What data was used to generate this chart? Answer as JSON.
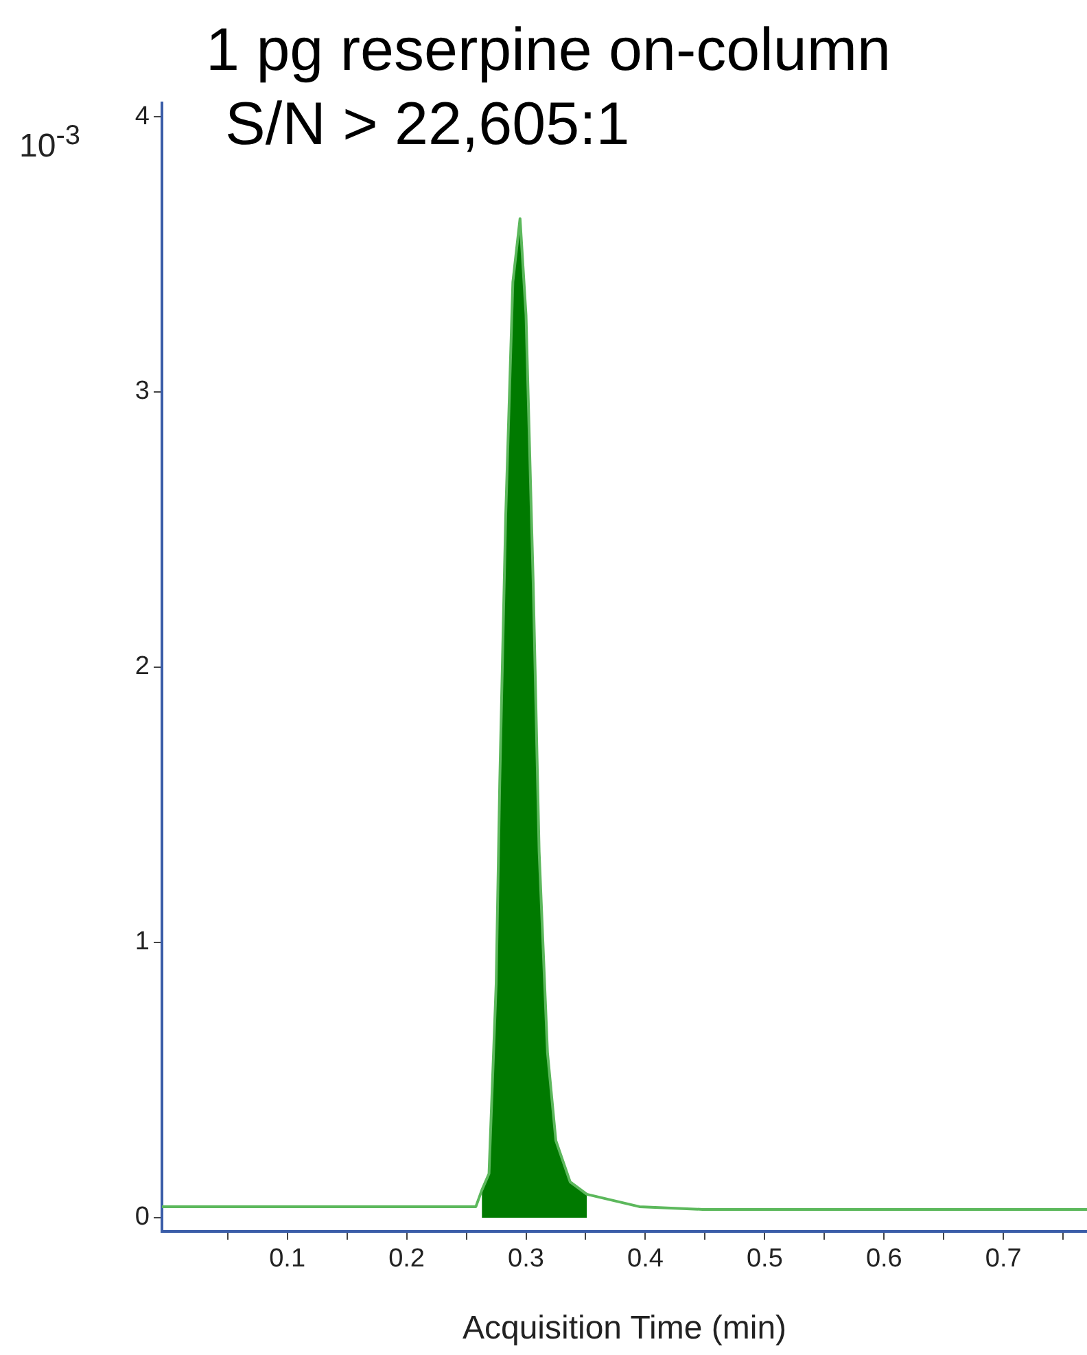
{
  "chart_data": {
    "type": "line",
    "title": "1 pg reserpine on-column",
    "subtitle": "S/N > 22,605:1",
    "xlabel": "Acquisition Time (min)",
    "ylabel": "10$^{-3}$",
    "xlim": [
      -0.005,
      0.77
    ],
    "ylim": [
      -0.05,
      4.05
    ],
    "xticks": [
      {
        "value": 0.05,
        "label": null
      },
      0.1,
      {
        "value": 0.15,
        "label": null
      },
      0.2,
      {
        "value": 0.25,
        "label": null
      },
      0.3,
      {
        "value": 0.35,
        "label": null
      },
      0.4,
      {
        "value": 0.45,
        "label": null
      },
      0.5,
      {
        "value": 0.55,
        "label": null
      },
      0.6,
      {
        "value": 0.65,
        "label": null
      },
      0.7,
      {
        "value": 0.75,
        "label": null
      }
    ],
    "yticks": [
      0,
      1,
      2,
      3,
      4
    ],
    "grid": false,
    "legend": false,
    "marker": "none",
    "series": [
      {
        "type": "line",
        "color": "#5cb85c",
        "x": [
          -0.005,
          0.1,
          0.2,
          0.258,
          0.263,
          0.269,
          0.275,
          0.278,
          0.283,
          0.289,
          0.295,
          0.3,
          0.306,
          0.311,
          0.318,
          0.325,
          0.337,
          0.351,
          0.395,
          0.448,
          0.6,
          0.77
        ],
        "values": [
          0.04,
          0.04,
          0.04,
          0.04,
          0.1,
          0.16,
          0.85,
          1.58,
          2.55,
          3.4,
          3.63,
          3.28,
          2.31,
          1.33,
          0.6,
          0.28,
          0.13,
          0.085,
          0.04,
          0.03,
          0.03,
          0.03
        ]
      },
      {
        "type": "area",
        "color": "#007a00",
        "x": [
          0.263,
          0.269,
          0.275,
          0.278,
          0.283,
          0.289,
          0.295,
          0.3,
          0.306,
          0.311,
          0.318,
          0.325,
          0.337,
          0.351
        ],
        "values": [
          0.1,
          0.16,
          0.85,
          1.58,
          2.55,
          3.4,
          3.63,
          3.28,
          2.31,
          1.33,
          0.6,
          0.28,
          0.13,
          0.085
        ]
      }
    ]
  }
}
